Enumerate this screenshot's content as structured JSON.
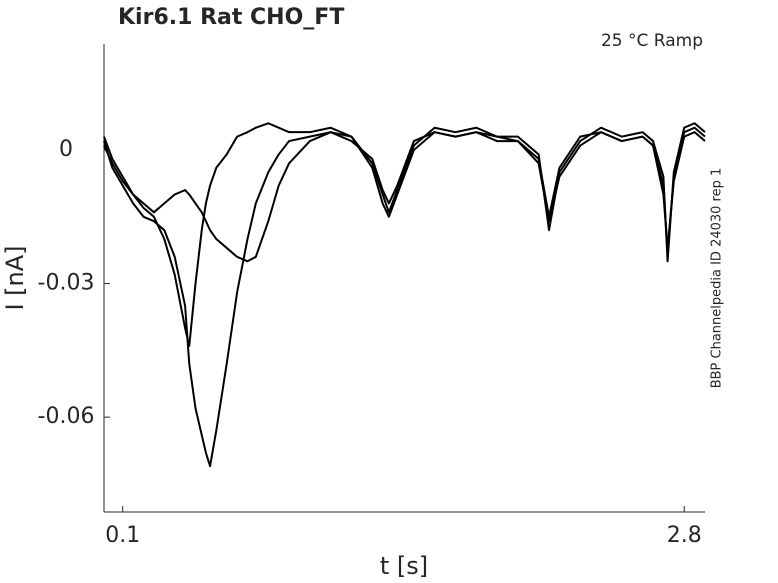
{
  "chart_data": {
    "type": "line",
    "title": "Kir6.1  Rat  CHO_FT",
    "annotation": "25 °C  Ramp",
    "side_note": "BBP Channelpedia ID 24030 rep 1",
    "xlabel": "t [s]",
    "ylabel": "I [nA]",
    "xlim": [
      0.01,
      2.9
    ],
    "ylim": [
      -0.0813,
      0.0238
    ],
    "xticks": [
      0.1,
      2.8
    ],
    "yticks": [
      -0.06,
      -0.03,
      0
    ],
    "grid": false,
    "x": [
      0.01,
      0.05,
      0.1,
      0.15,
      0.2,
      0.25,
      0.3,
      0.35,
      0.4,
      0.42,
      0.45,
      0.48,
      0.5,
      0.52,
      0.55,
      0.6,
      0.65,
      0.7,
      0.74,
      0.8,
      0.85,
      0.9,
      1.0,
      1.1,
      1.2,
      1.3,
      1.35,
      1.38,
      1.42,
      1.5,
      1.6,
      1.7,
      1.8,
      1.9,
      2.0,
      2.1,
      2.15,
      2.2,
      2.3,
      2.4,
      2.5,
      2.6,
      2.65,
      2.7,
      2.72,
      2.75,
      2.8,
      2.85,
      2.9
    ],
    "series": [
      {
        "color": "#000000",
        "values": [
          0.002,
          -0.004,
          -0.008,
          -0.012,
          -0.015,
          -0.016,
          -0.018,
          -0.024,
          -0.035,
          -0.048,
          -0.058,
          -0.064,
          -0.068,
          -0.071,
          -0.063,
          -0.048,
          -0.032,
          -0.02,
          -0.012,
          -0.005,
          -0.001,
          0.002,
          0.003,
          0.004,
          0.002,
          -0.002,
          -0.009,
          -0.012,
          -0.008,
          0.002,
          0.004,
          0.003,
          0.004,
          0.003,
          0.002,
          -0.002,
          -0.015,
          -0.004,
          0.003,
          0.004,
          0.002,
          0.003,
          0.001,
          -0.008,
          -0.023,
          -0.006,
          0.004,
          0.005,
          0.003
        ]
      },
      {
        "color": "#000000",
        "values": [
          0.003,
          -0.002,
          -0.006,
          -0.01,
          -0.013,
          -0.015,
          -0.02,
          -0.028,
          -0.04,
          -0.044,
          -0.03,
          -0.018,
          -0.012,
          -0.008,
          -0.004,
          -0.001,
          0.003,
          0.004,
          0.005,
          0.006,
          0.005,
          0.004,
          0.004,
          0.005,
          0.003,
          -0.003,
          -0.01,
          -0.014,
          -0.009,
          0.001,
          0.005,
          0.004,
          0.005,
          0.003,
          0.003,
          -0.001,
          -0.018,
          -0.005,
          0.002,
          0.005,
          0.003,
          0.004,
          0.002,
          -0.006,
          -0.025,
          -0.005,
          0.005,
          0.006,
          0.004
        ]
      },
      {
        "color": "#000000",
        "values": [
          0.001,
          -0.003,
          -0.007,
          -0.01,
          -0.012,
          -0.014,
          -0.012,
          -0.01,
          -0.009,
          -0.01,
          -0.012,
          -0.014,
          -0.016,
          -0.018,
          -0.02,
          -0.022,
          -0.024,
          -0.025,
          -0.024,
          -0.016,
          -0.008,
          -0.003,
          0.002,
          0.004,
          0.003,
          -0.004,
          -0.012,
          -0.015,
          -0.01,
          0.0,
          0.004,
          0.003,
          0.004,
          0.002,
          0.002,
          -0.003,
          -0.016,
          -0.006,
          0.001,
          0.004,
          0.002,
          0.003,
          0.001,
          -0.01,
          -0.022,
          -0.007,
          0.003,
          0.004,
          0.002
        ]
      }
    ]
  }
}
